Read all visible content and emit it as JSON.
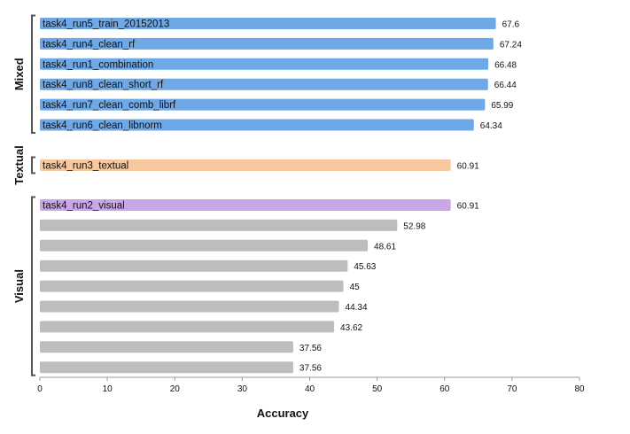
{
  "chart_data": {
    "type": "bar",
    "orientation": "horizontal",
    "xlabel": "Accuracy",
    "xlim": [
      0,
      80
    ],
    "xticks": [
      "0",
      "10",
      "20",
      "30",
      "40",
      "50",
      "60",
      "70",
      "80"
    ],
    "grid": false,
    "colors": {
      "Mixed": "#6fa8e6",
      "Textual": "#f7c79e",
      "Visual_highlight": "#c9a7e6",
      "Visual_other": "#bdbdbd"
    },
    "groups": [
      {
        "name": "Mixed",
        "bars": [
          {
            "label": "task4_run5_train_20152013",
            "value": 67.6,
            "value_text": "67.6"
          },
          {
            "label": "task4_run4_clean_rf",
            "value": 67.24,
            "value_text": "67.24"
          },
          {
            "label": "task4_run1_combination",
            "value": 66.48,
            "value_text": "66.48"
          },
          {
            "label": "task4_run8_clean_short_rf",
            "value": 66.44,
            "value_text": "66.44"
          },
          {
            "label": "task4_run7_clean_comb_librf",
            "value": 65.99,
            "value_text": "65.99"
          },
          {
            "label": "task4_run6_clean_libnorm",
            "value": 64.34,
            "value_text": "64.34"
          }
        ]
      },
      {
        "name": "Textual",
        "bars": [
          {
            "label": "task4_run3_textual",
            "value": 60.91,
            "value_text": "60.91"
          }
        ]
      },
      {
        "name": "Visual",
        "bars": [
          {
            "label": "task4_run2_visual",
            "value": 60.91,
            "value_text": "60.91",
            "highlight": true
          },
          {
            "label": "",
            "value": 52.98,
            "value_text": "52.98"
          },
          {
            "label": "",
            "value": 48.61,
            "value_text": "48.61"
          },
          {
            "label": "",
            "value": 45.63,
            "value_text": "45.63"
          },
          {
            "label": "",
            "value": 45,
            "value_text": "45"
          },
          {
            "label": "",
            "value": 44.34,
            "value_text": "44.34"
          },
          {
            "label": "",
            "value": 43.62,
            "value_text": "43.62"
          },
          {
            "label": "",
            "value": 37.56,
            "value_text": "37.56"
          },
          {
            "label": "",
            "value": 37.56,
            "value_text": "37.56"
          }
        ]
      }
    ]
  }
}
